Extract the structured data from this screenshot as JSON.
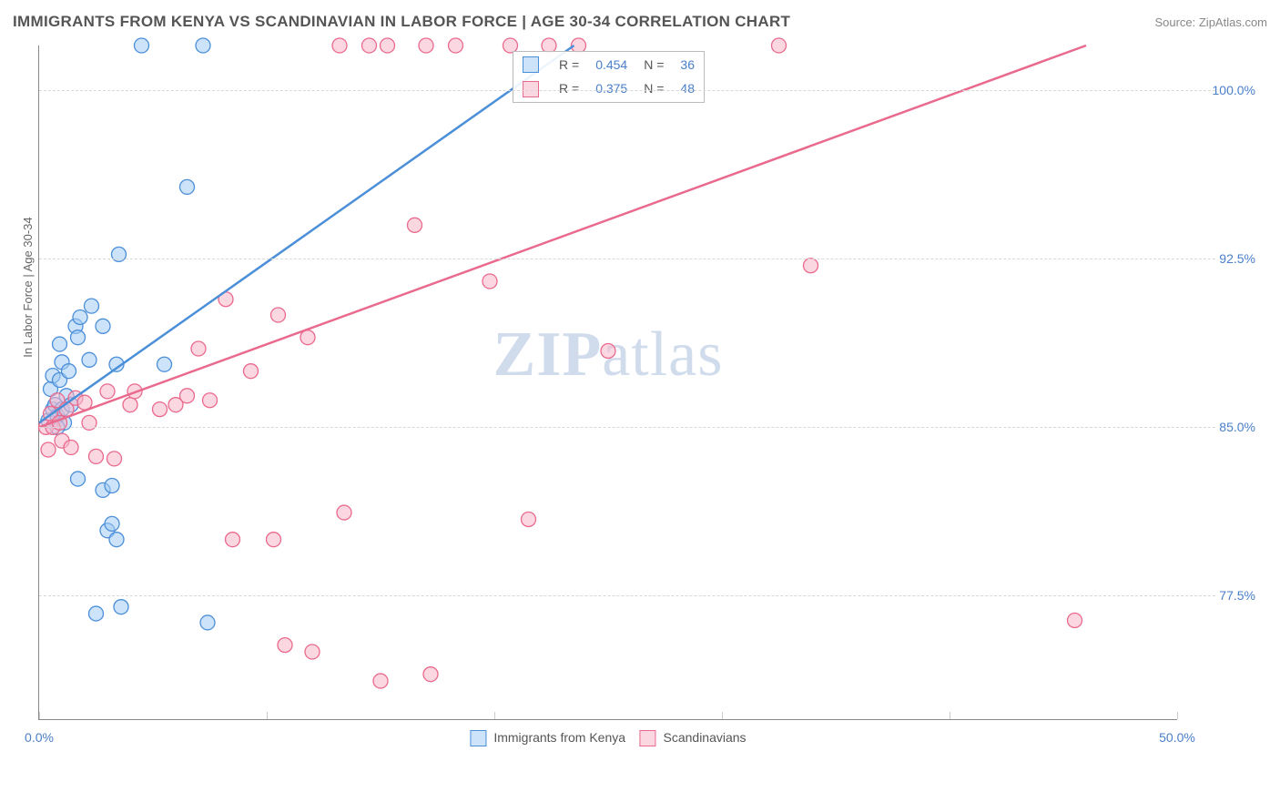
{
  "title": "IMMIGRANTS FROM KENYA VS SCANDINAVIAN IN LABOR FORCE | AGE 30-34 CORRELATION CHART",
  "source": "Source: ZipAtlas.com",
  "yaxis_title": "In Labor Force | Age 30-34",
  "watermark_a": "ZIP",
  "watermark_b": "atlas",
  "chart": {
    "type": "scatter",
    "xlim": [
      0,
      50
    ],
    "ylim": [
      72,
      102
    ],
    "xticks": [
      0,
      10,
      20,
      30,
      40,
      50
    ],
    "yticks": [
      77.5,
      85,
      92.5,
      100
    ],
    "xticklabels": {
      "0": "0.0%",
      "50": "50.0%"
    },
    "yticklabels": {
      "77.5": "77.5%",
      "85": "85.0%",
      "92.5": "92.5%",
      "100": "100.0%"
    },
    "grid_color": "#d8d8d8",
    "marker_radius": 8,
    "series": [
      {
        "id": "kenya",
        "label": "Immigrants from Kenya",
        "stroke": "#4b8fd9",
        "fill": "rgba(164,204,244,0.55)",
        "trend": {
          "x1": 0,
          "y1": 85.2,
          "x2": 23.5,
          "y2": 102,
          "width": 2.5
        },
        "corr": {
          "R": "0.454",
          "N": "36"
        },
        "points": [
          [
            0.4,
            85.3
          ],
          [
            0.5,
            86.7
          ],
          [
            0.6,
            85.8
          ],
          [
            0.6,
            87.3
          ],
          [
            0.7,
            86.0
          ],
          [
            0.8,
            85.5
          ],
          [
            0.9,
            87.1
          ],
          [
            0.9,
            88.7
          ],
          [
            1.0,
            85.8
          ],
          [
            1.0,
            87.9
          ],
          [
            1.1,
            85.2
          ],
          [
            1.2,
            86.4
          ],
          [
            1.3,
            87.5
          ],
          [
            1.4,
            86.0
          ],
          [
            1.6,
            89.5
          ],
          [
            1.7,
            89.0
          ],
          [
            1.8,
            89.9
          ],
          [
            2.2,
            88.0
          ],
          [
            2.3,
            90.4
          ],
          [
            2.8,
            89.5
          ],
          [
            3.4,
            87.8
          ],
          [
            3.5,
            92.7
          ],
          [
            1.7,
            82.7
          ],
          [
            2.8,
            82.2
          ],
          [
            3.0,
            80.4
          ],
          [
            3.2,
            82.4
          ],
          [
            3.2,
            80.7
          ],
          [
            3.4,
            80.0
          ],
          [
            3.6,
            77.0
          ],
          [
            2.5,
            76.7
          ],
          [
            4.5,
            102
          ],
          [
            7.2,
            102
          ],
          [
            6.5,
            95.7
          ],
          [
            5.5,
            87.8
          ],
          [
            7.4,
            76.3
          ],
          [
            0.8,
            85.0
          ]
        ]
      },
      {
        "id": "scan",
        "label": "Scandinavians",
        "stroke": "#e96a8d",
        "fill": "rgba(248,183,202,0.55)",
        "trend": {
          "x1": 0,
          "y1": 85.0,
          "x2": 46,
          "y2": 102,
          "width": 2.5
        },
        "corr": {
          "R": "0.375",
          "N": "48"
        },
        "points": [
          [
            0.3,
            85.0
          ],
          [
            0.4,
            84.0
          ],
          [
            0.5,
            85.6
          ],
          [
            0.6,
            85.0
          ],
          [
            0.8,
            86.2
          ],
          [
            0.9,
            85.2
          ],
          [
            1.0,
            84.4
          ],
          [
            1.2,
            85.8
          ],
          [
            1.4,
            84.1
          ],
          [
            1.6,
            86.3
          ],
          [
            2.0,
            86.1
          ],
          [
            2.2,
            85.2
          ],
          [
            2.5,
            83.7
          ],
          [
            3.0,
            86.6
          ],
          [
            3.3,
            83.6
          ],
          [
            4.0,
            86.0
          ],
          [
            4.2,
            86.6
          ],
          [
            5.3,
            85.8
          ],
          [
            6.5,
            86.4
          ],
          [
            7.5,
            86.2
          ],
          [
            7.0,
            88.5
          ],
          [
            8.2,
            90.7
          ],
          [
            9.3,
            87.5
          ],
          [
            10.5,
            90.0
          ],
          [
            11.8,
            89.0
          ],
          [
            13.2,
            102
          ],
          [
            14.5,
            102
          ],
          [
            15.3,
            102
          ],
          [
            16.5,
            94.0
          ],
          [
            17.0,
            102
          ],
          [
            18.3,
            102
          ],
          [
            19.8,
            91.5
          ],
          [
            20.7,
            102
          ],
          [
            21.5,
            80.9
          ],
          [
            22.4,
            102
          ],
          [
            23.7,
            102
          ],
          [
            25.0,
            88.4
          ],
          [
            32.5,
            102
          ],
          [
            33.9,
            92.2
          ],
          [
            45.5,
            76.4
          ],
          [
            13.4,
            81.2
          ],
          [
            15.0,
            73.7
          ],
          [
            17.2,
            74.0
          ],
          [
            10.3,
            80.0
          ],
          [
            12.0,
            75.0
          ],
          [
            10.8,
            75.3
          ],
          [
            8.5,
            80.0
          ],
          [
            6.0,
            86.0
          ]
        ]
      }
    ]
  },
  "corr_labels": {
    "R": "R =",
    "N": "N ="
  }
}
